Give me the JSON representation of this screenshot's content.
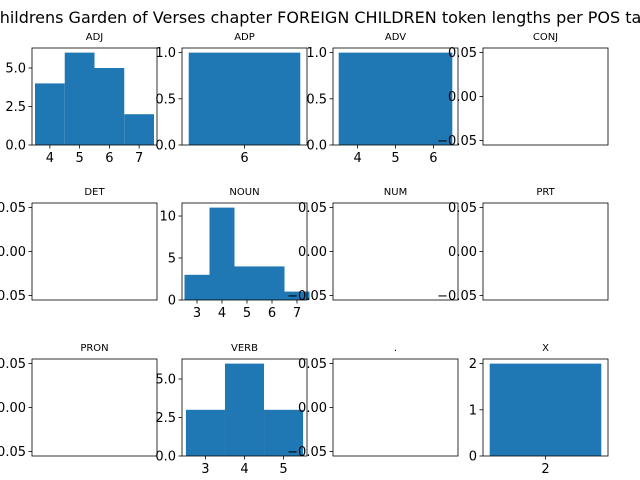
{
  "figure": {
    "title": "Childrens Garden of Verses chapter FOREIGN CHILDREN token lengths per POS tag"
  },
  "chart_data": [
    {
      "type": "bar",
      "title": "ADJ",
      "x": [
        4,
        5,
        6,
        7
      ],
      "values": [
        4,
        6,
        5,
        2
      ],
      "xlim": [
        3.4,
        7.6
      ],
      "ylim": [
        0,
        6.3
      ],
      "xticks": [
        4,
        5,
        6,
        7
      ],
      "yticks": [
        0,
        2.5,
        5
      ],
      "ytick_labels": [
        "0.0",
        "2.5",
        "5.0"
      ],
      "color": "#1f77b4"
    },
    {
      "type": "bar",
      "title": "ADP",
      "x": [
        6
      ],
      "values": [
        1
      ],
      "width": 2.5,
      "xlim": [
        4.6,
        7.4
      ],
      "ylim": [
        0,
        1.05
      ],
      "xticks": [
        6
      ],
      "yticks": [
        0,
        0.5,
        1
      ],
      "ytick_labels": [
        "0.0",
        "0.5",
        "1.0"
      ],
      "color": "#1f77b4"
    },
    {
      "type": "bar",
      "title": "ADV",
      "x": [
        5
      ],
      "values": [
        1
      ],
      "width": 3,
      "xlim": [
        3.35,
        6.65
      ],
      "ylim": [
        0,
        1.05
      ],
      "xticks": [
        4,
        5,
        6
      ],
      "yticks": [
        0,
        0.5,
        1
      ],
      "ytick_labels": [
        "0.0",
        "0.5",
        "1.0"
      ],
      "color": "#1f77b4"
    },
    {
      "type": "bar",
      "title": "CONJ",
      "x": [],
      "values": [],
      "xlim": [
        0,
        1
      ],
      "ylim": [
        -0.055,
        0.055
      ],
      "xticks": [],
      "yticks": [
        -0.05,
        0,
        0.05
      ],
      "ytick_labels": [
        "−0.05",
        "0.00",
        "0.05"
      ],
      "color": "#1f77b4"
    },
    {
      "type": "bar",
      "title": "DET",
      "x": [],
      "values": [],
      "xlim": [
        0,
        1
      ],
      "ylim": [
        -0.055,
        0.055
      ],
      "xticks": [],
      "yticks": [
        -0.05,
        0,
        0.05
      ],
      "ytick_labels": [
        "−0.05",
        "0.00",
        "0.05"
      ],
      "color": "#1f77b4"
    },
    {
      "type": "bar",
      "title": "NOUN",
      "x": [
        3,
        4,
        5,
        6,
        7
      ],
      "values": [
        3,
        11,
        4,
        4,
        1
      ],
      "xlim": [
        2.4,
        7.4
      ],
      "ylim": [
        0,
        11.55
      ],
      "xticks": [
        3,
        4,
        5,
        6,
        7
      ],
      "yticks": [
        0,
        5,
        10
      ],
      "ytick_labels": [
        "0",
        "5",
        "10"
      ],
      "color": "#1f77b4"
    },
    {
      "type": "bar",
      "title": "NUM",
      "x": [],
      "values": [],
      "xlim": [
        0,
        1
      ],
      "ylim": [
        -0.055,
        0.055
      ],
      "xticks": [],
      "yticks": [
        -0.05,
        0,
        0.05
      ],
      "ytick_labels": [
        "−0.05",
        "0.00",
        "0.05"
      ],
      "color": "#1f77b4"
    },
    {
      "type": "bar",
      "title": "PRT",
      "x": [],
      "values": [],
      "xlim": [
        0,
        1
      ],
      "ylim": [
        -0.055,
        0.055
      ],
      "xticks": [],
      "yticks": [
        -0.05,
        0,
        0.05
      ],
      "ytick_labels": [
        "−0.05",
        "0.00",
        "0.05"
      ],
      "color": "#1f77b4"
    },
    {
      "type": "bar",
      "title": "PRON",
      "x": [],
      "values": [],
      "xlim": [
        0,
        1
      ],
      "ylim": [
        -0.055,
        0.055
      ],
      "xticks": [],
      "yticks": [
        -0.05,
        0,
        0.05
      ],
      "ytick_labels": [
        "−0.05",
        "0.00",
        "0.05"
      ],
      "color": "#1f77b4"
    },
    {
      "type": "bar",
      "title": "VERB",
      "x": [
        3,
        4,
        5
      ],
      "values": [
        3,
        6,
        3
      ],
      "xlim": [
        2.4,
        5.6
      ],
      "ylim": [
        0,
        6.3
      ],
      "xticks": [
        3,
        4,
        5
      ],
      "yticks": [
        0,
        2.5,
        5
      ],
      "ytick_labels": [
        "0.0",
        "2.5",
        "5.0"
      ],
      "color": "#1f77b4"
    },
    {
      "type": "bar",
      "title": ".",
      "x": [],
      "values": [],
      "xlim": [
        0,
        1
      ],
      "ylim": [
        -0.055,
        0.055
      ],
      "xticks": [],
      "yticks": [
        -0.05,
        0,
        0.05
      ],
      "ytick_labels": [
        "−0.05",
        "0.00",
        "0.05"
      ],
      "color": "#1f77b4"
    },
    {
      "type": "bar",
      "title": "X",
      "x": [
        2
      ],
      "values": [
        2
      ],
      "width": 2.5,
      "xlim": [
        0.6,
        3.4
      ],
      "ylim": [
        0,
        2.1
      ],
      "xticks": [
        2
      ],
      "yticks": [
        0,
        1,
        2
      ],
      "ytick_labels": [
        "0",
        "1",
        "2"
      ],
      "color": "#1f77b4"
    }
  ]
}
